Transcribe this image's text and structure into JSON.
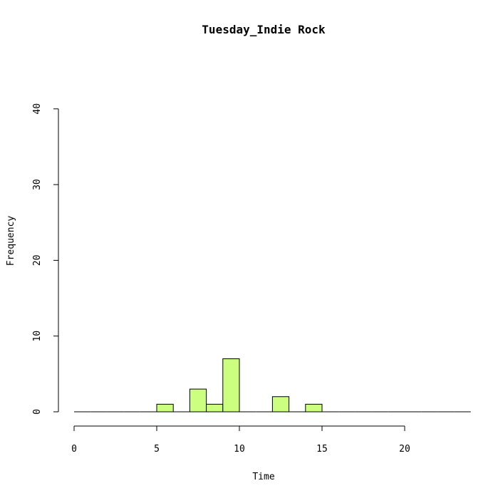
{
  "chart_data": {
    "type": "bar",
    "title": "Tuesday_Indie Rock",
    "xlabel": "Time",
    "ylabel": "Frequency",
    "xlim": [
      0,
      24
    ],
    "ylim": [
      0,
      40
    ],
    "bin_width": 1,
    "bins": [
      {
        "x0": 0,
        "x1": 1,
        "count": 0
      },
      {
        "x0": 1,
        "x1": 2,
        "count": 0
      },
      {
        "x0": 2,
        "x1": 3,
        "count": 0
      },
      {
        "x0": 3,
        "x1": 4,
        "count": 0
      },
      {
        "x0": 4,
        "x1": 5,
        "count": 0
      },
      {
        "x0": 5,
        "x1": 6,
        "count": 1
      },
      {
        "x0": 6,
        "x1": 7,
        "count": 0
      },
      {
        "x0": 7,
        "x1": 8,
        "count": 3
      },
      {
        "x0": 8,
        "x1": 9,
        "count": 1
      },
      {
        "x0": 9,
        "x1": 10,
        "count": 7
      },
      {
        "x0": 10,
        "x1": 11,
        "count": 0
      },
      {
        "x0": 11,
        "x1": 12,
        "count": 0
      },
      {
        "x0": 12,
        "x1": 13,
        "count": 2
      },
      {
        "x0": 13,
        "x1": 14,
        "count": 0
      },
      {
        "x0": 14,
        "x1": 15,
        "count": 1
      },
      {
        "x0": 15,
        "x1": 16,
        "count": 0
      },
      {
        "x0": 16,
        "x1": 17,
        "count": 0
      },
      {
        "x0": 17,
        "x1": 18,
        "count": 0
      },
      {
        "x0": 18,
        "x1": 19,
        "count": 0
      },
      {
        "x0": 19,
        "x1": 20,
        "count": 0
      },
      {
        "x0": 20,
        "x1": 21,
        "count": 0
      },
      {
        "x0": 21,
        "x1": 22,
        "count": 0
      },
      {
        "x0": 22,
        "x1": 23,
        "count": 0
      },
      {
        "x0": 23,
        "x1": 24,
        "count": 0
      }
    ],
    "x_ticks": [
      0,
      5,
      10,
      15,
      20
    ],
    "y_ticks": [
      0,
      10,
      20,
      30,
      40
    ],
    "bar_color": "#ccff80",
    "grid": false
  }
}
